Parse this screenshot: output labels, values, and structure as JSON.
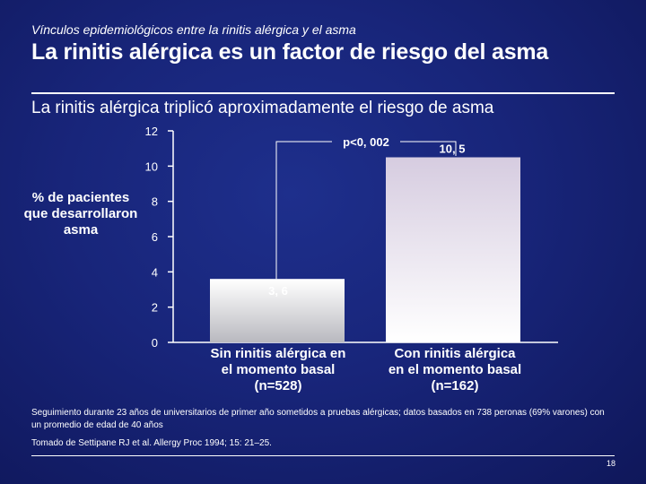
{
  "header": {
    "kicker": "Vínculos epidemiológicos entre la rinitis alérgica y el asma",
    "title": "La rinitis alérgica es un factor de riesgo del asma"
  },
  "chart_data": {
    "type": "bar",
    "title": "La rinitis alérgica triplicó aproximadamente el riesgo de asma",
    "ylabel": "% de pacientes que desarrollaron asma",
    "ylim": [
      0,
      12
    ],
    "yticks": [
      0,
      2,
      4,
      6,
      8,
      10,
      12
    ],
    "categories": [
      [
        "Sin rinitis alérgica en",
        "el momento basal",
        "(n=528)"
      ],
      [
        "Con rinitis alérgica",
        "en el momento basal",
        "(n=162)"
      ]
    ],
    "values": [
      3.6,
      10.5
    ],
    "value_labels": [
      "3, 6",
      "10, 5"
    ],
    "significance": "p<0, 002",
    "grid": false,
    "colors": {
      "bar_top": "#ffffff",
      "bar_bottom": "#b9b9bf",
      "bar2_top": "#d6cce0",
      "axis": "#ffffff"
    }
  },
  "footnotes": {
    "study": "Seguimiento durante 23 años de universitarios de primer año sometidos a pruebas alérgicas; datos basados en 738 peronas (69% varones) con un promedio de edad de 40 años",
    "citation": "Tomado de Settipane RJ et al. Allergy Proc 1994; 15: 21–25."
  },
  "page_number": "18"
}
